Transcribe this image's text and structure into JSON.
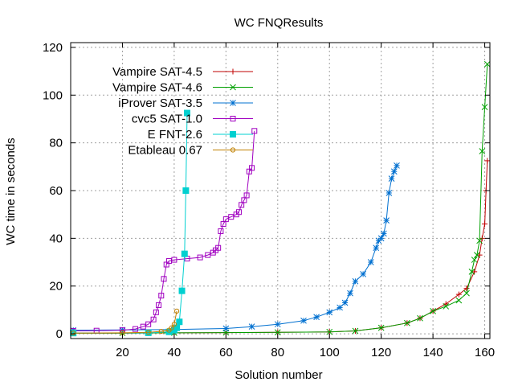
{
  "chart_data": {
    "type": "line",
    "title": "WC FNQResults",
    "xlabel": "Solution number",
    "ylabel": "WC time in seconds",
    "xlim": [
      0,
      162
    ],
    "ylim": [
      -2,
      122
    ],
    "xticks": [
      20,
      40,
      60,
      80,
      100,
      120,
      140,
      160
    ],
    "yticks": [
      0,
      20,
      40,
      60,
      80,
      100,
      120
    ],
    "grid": true,
    "legend_position": "top-left",
    "series": [
      {
        "name": "Vampire SAT-4.5",
        "color": "#c00000",
        "marker": "plus",
        "points": [
          [
            1,
            0.3
          ],
          [
            20,
            0.3
          ],
          [
            40,
            0.4
          ],
          [
            60,
            0.5
          ],
          [
            80,
            0.6
          ],
          [
            100,
            0.8
          ],
          [
            110,
            1.2
          ],
          [
            120,
            2.5
          ],
          [
            130,
            4.5
          ],
          [
            135,
            6.5
          ],
          [
            140,
            9.5
          ],
          [
            145,
            12.5
          ],
          [
            150,
            16.5
          ],
          [
            153,
            19
          ],
          [
            156,
            26
          ],
          [
            158,
            33
          ],
          [
            159,
            40
          ],
          [
            160,
            46
          ],
          [
            160.5,
            60
          ],
          [
            161,
            72.5
          ]
        ]
      },
      {
        "name": "Vampire SAT-4.6",
        "color": "#00a000",
        "marker": "x",
        "points": [
          [
            1,
            0.3
          ],
          [
            20,
            0.3
          ],
          [
            40,
            0.4
          ],
          [
            60,
            0.5
          ],
          [
            80,
            0.6
          ],
          [
            100,
            0.8
          ],
          [
            110,
            1.2
          ],
          [
            120,
            2.5
          ],
          [
            130,
            4.5
          ],
          [
            135,
            6.5
          ],
          [
            140,
            9.5
          ],
          [
            145,
            11.5
          ],
          [
            150,
            14
          ],
          [
            153,
            17
          ],
          [
            155,
            26
          ],
          [
            156,
            31
          ],
          [
            157,
            33
          ],
          [
            158,
            39
          ],
          [
            159,
            76.5
          ],
          [
            160,
            95
          ],
          [
            161,
            113
          ]
        ]
      },
      {
        "name": "iProver SAT-3.5",
        "color": "#0070d0",
        "marker": "star",
        "points": [
          [
            1,
            1.5
          ],
          [
            20,
            1.6
          ],
          [
            40,
            1.8
          ],
          [
            60,
            2.2
          ],
          [
            70,
            3
          ],
          [
            80,
            4
          ],
          [
            90,
            5.5
          ],
          [
            95,
            7
          ],
          [
            100,
            9
          ],
          [
            104,
            11
          ],
          [
            106,
            13
          ],
          [
            108,
            17
          ],
          [
            110,
            22
          ],
          [
            113,
            25
          ],
          [
            116,
            30
          ],
          [
            118,
            36
          ],
          [
            119,
            39
          ],
          [
            120,
            40
          ],
          [
            121,
            42
          ],
          [
            122,
            47.5
          ],
          [
            123,
            59
          ],
          [
            124,
            65
          ],
          [
            125,
            68
          ],
          [
            126,
            70.5
          ]
        ]
      },
      {
        "name": "cvc5 SAT-1.0",
        "color": "#a000c0",
        "marker": "square",
        "points": [
          [
            1,
            1.2
          ],
          [
            10,
            1.3
          ],
          [
            20,
            1.5
          ],
          [
            25,
            2
          ],
          [
            28,
            3
          ],
          [
            30,
            4
          ],
          [
            32,
            6
          ],
          [
            33,
            9
          ],
          [
            34,
            12
          ],
          [
            35,
            16
          ],
          [
            36,
            23
          ],
          [
            37,
            29
          ],
          [
            38,
            30.5
          ],
          [
            40,
            31
          ],
          [
            45,
            31.5
          ],
          [
            50,
            32
          ],
          [
            53,
            33
          ],
          [
            55,
            34
          ],
          [
            56,
            35
          ],
          [
            57,
            36
          ],
          [
            58,
            43
          ],
          [
            59,
            46
          ],
          [
            60,
            48
          ],
          [
            62,
            49
          ],
          [
            64,
            50
          ],
          [
            65,
            51
          ],
          [
            66,
            54
          ],
          [
            67,
            56
          ],
          [
            68,
            58
          ],
          [
            69,
            68
          ],
          [
            70,
            69.5
          ],
          [
            71,
            85
          ]
        ]
      },
      {
        "name": "E FNT-2.6",
        "color": "#00d0d0",
        "marker": "filled-square",
        "points": [
          [
            1,
            0.3
          ],
          [
            30,
            0.4
          ],
          [
            38,
            0.8
          ],
          [
            40,
            1.5
          ],
          [
            41,
            2.5
          ],
          [
            42,
            5
          ],
          [
            43,
            18
          ],
          [
            44,
            33.5
          ],
          [
            44.5,
            60
          ],
          [
            45,
            92.5
          ]
        ]
      },
      {
        "name": "Etableau 0.67",
        "color": "#c08000",
        "marker": "circle",
        "points": [
          [
            1,
            0.3
          ],
          [
            20,
            0.4
          ],
          [
            30,
            0.6
          ],
          [
            35,
            1
          ],
          [
            38,
            1.5
          ],
          [
            39,
            2.5
          ],
          [
            40,
            4
          ],
          [
            41,
            9.5
          ]
        ]
      }
    ]
  }
}
